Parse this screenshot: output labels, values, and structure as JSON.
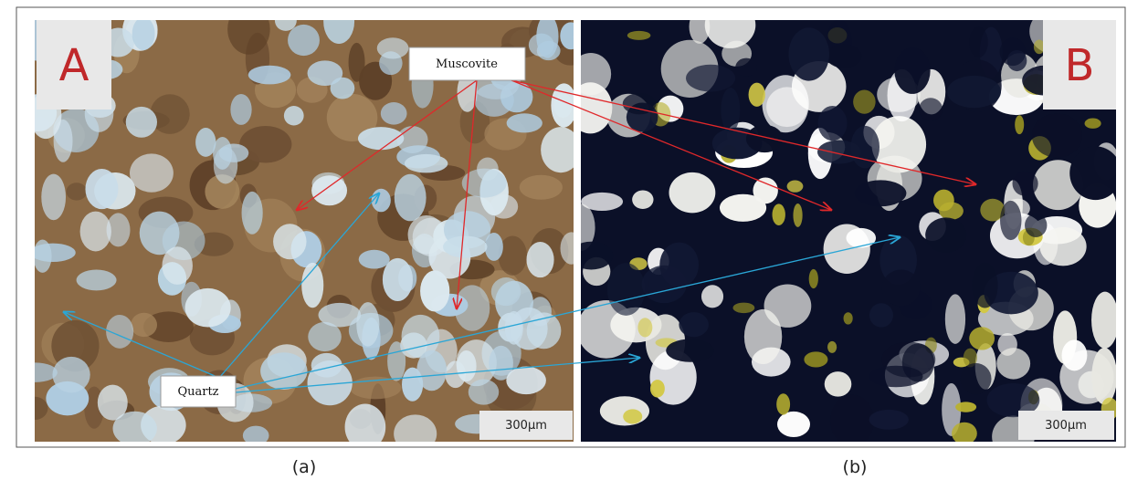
{
  "panels": [
    {
      "letter": "A",
      "scale": "300μm",
      "caption": "(a)"
    },
    {
      "letter": "B",
      "scale": "300μm",
      "caption": "(b)"
    }
  ],
  "annotations": {
    "muscovite": "Muscovite",
    "quartz": "Quartz"
  }
}
